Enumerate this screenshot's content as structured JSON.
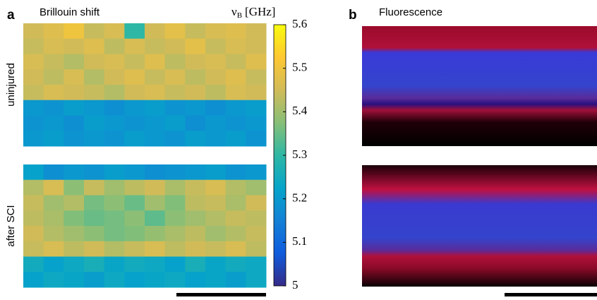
{
  "figure": {
    "panel_a": {
      "letter": "a",
      "title": "Brillouin shift"
    },
    "panel_b": {
      "letter": "b",
      "title": "Fluorescence"
    },
    "row_labels": [
      "uninjured",
      "after SCI"
    ],
    "colorbar": {
      "symbol": "ν",
      "subscript": "B",
      "unit": "[GHz]",
      "lim": [
        5,
        5.6
      ],
      "ticks": [
        5,
        5.1,
        5.2,
        5.3,
        5.4,
        5.5,
        5.6
      ],
      "colormap": [
        "#352a87",
        "#0f5cdd",
        "#1481d6",
        "#06a4ca",
        "#2eb7a4",
        "#87bf77",
        "#d1bb59",
        "#fec832",
        "#f9fb0e"
      ]
    },
    "heatmaps": [
      {
        "matrix": [
          [
            5.45,
            5.47,
            5.5,
            5.44,
            5.46,
            5.3,
            5.45,
            5.48,
            5.44,
            5.46,
            5.47,
            5.45
          ],
          [
            5.44,
            5.46,
            5.45,
            5.47,
            5.43,
            5.46,
            5.44,
            5.45,
            5.48,
            5.44,
            5.46,
            5.45
          ],
          [
            5.46,
            5.44,
            5.42,
            5.45,
            5.46,
            5.44,
            5.47,
            5.43,
            5.45,
            5.46,
            5.44,
            5.47
          ],
          [
            5.45,
            5.43,
            5.46,
            5.42,
            5.45,
            5.47,
            5.44,
            5.46,
            5.43,
            5.45,
            5.47,
            5.44
          ],
          [
            5.44,
            5.46,
            5.45,
            5.44,
            5.42,
            5.45,
            5.46,
            5.44,
            5.45,
            5.43,
            5.46,
            5.45
          ],
          [
            5.2,
            5.19,
            5.21,
            5.2,
            5.18,
            5.2,
            5.21,
            5.19,
            5.2,
            5.18,
            5.2,
            5.21
          ],
          [
            5.19,
            5.2,
            5.18,
            5.21,
            5.2,
            5.19,
            5.2,
            5.21,
            5.18,
            5.2,
            5.19,
            5.2
          ],
          [
            5.2,
            5.21,
            5.19,
            5.2,
            5.19,
            5.21,
            5.2,
            5.19,
            5.21,
            5.2,
            5.21,
            5.19
          ]
        ]
      },
      {
        "matrix": [
          [
            5.22,
            5.18,
            5.2,
            5.19,
            5.21,
            5.2,
            5.18,
            5.19,
            5.2,
            5.21,
            5.19,
            5.2
          ],
          [
            5.42,
            5.46,
            5.38,
            5.44,
            5.4,
            5.43,
            5.45,
            5.41,
            5.44,
            5.46,
            5.42,
            5.4
          ],
          [
            5.44,
            5.4,
            5.42,
            5.36,
            5.38,
            5.35,
            5.4,
            5.37,
            5.43,
            5.44,
            5.41,
            5.45
          ],
          [
            5.43,
            5.41,
            5.37,
            5.35,
            5.36,
            5.38,
            5.34,
            5.38,
            5.4,
            5.42,
            5.44,
            5.43
          ],
          [
            5.45,
            5.42,
            5.4,
            5.38,
            5.36,
            5.37,
            5.39,
            5.41,
            5.43,
            5.4,
            5.42,
            5.44
          ],
          [
            5.44,
            5.46,
            5.43,
            5.45,
            5.42,
            5.44,
            5.46,
            5.43,
            5.45,
            5.44,
            5.46,
            5.43
          ],
          [
            5.25,
            5.22,
            5.24,
            5.26,
            5.23,
            5.25,
            5.24,
            5.22,
            5.26,
            5.23,
            5.25,
            5.24
          ],
          [
            5.22,
            5.24,
            5.23,
            5.21,
            5.24,
            5.22,
            5.23,
            5.24,
            5.22,
            5.23,
            5.21,
            5.24
          ]
        ]
      }
    ]
  }
}
